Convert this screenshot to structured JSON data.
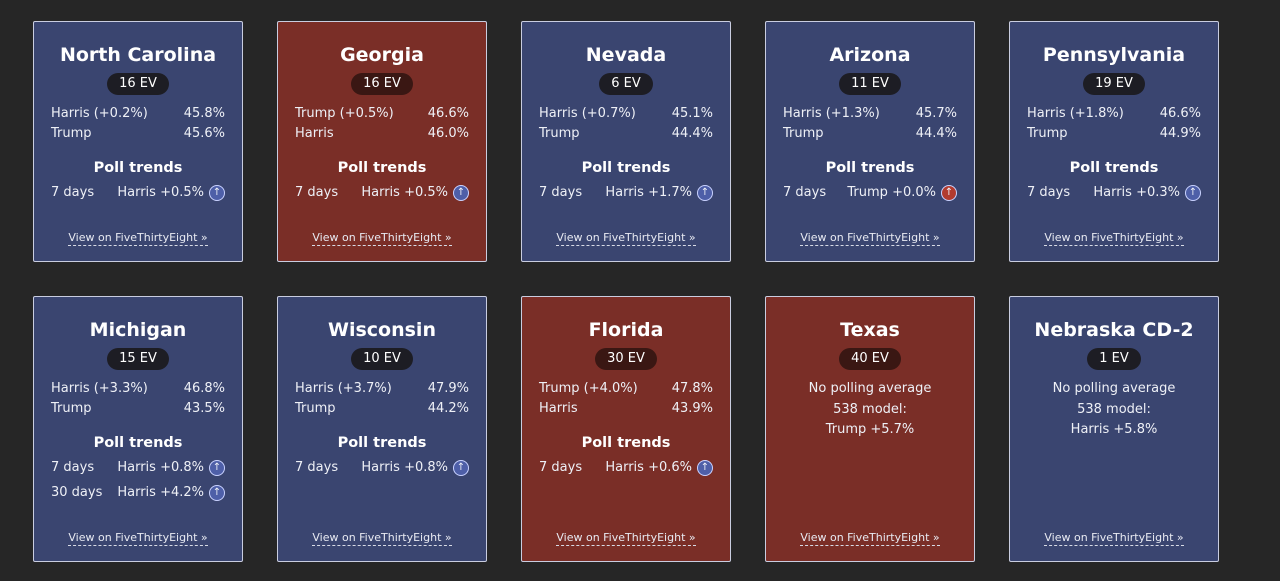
{
  "link_label": "View on FiveThirtyEight »",
  "poll_trends_label": "Poll trends",
  "colors": {
    "dem_card": "#3a4570",
    "rep_card": "#7a2e27",
    "background": "#262626"
  },
  "states": [
    {
      "name": "North Carolina",
      "ev": "16 EV",
      "color": "blue",
      "leader": "Harris (+0.2%)",
      "leader_pct": "45.8%",
      "trailer": "Trump",
      "trailer_pct": "45.6%",
      "trends": [
        {
          "period": "7 days",
          "value": "Harris +0.5%",
          "party": "dem"
        }
      ]
    },
    {
      "name": "Georgia",
      "ev": "16 EV",
      "color": "red",
      "leader": "Trump (+0.5%)",
      "leader_pct": "46.6%",
      "trailer": "Harris",
      "trailer_pct": "46.0%",
      "trends": [
        {
          "period": "7 days",
          "value": "Harris +0.5%",
          "party": "dem"
        }
      ]
    },
    {
      "name": "Nevada",
      "ev": "6 EV",
      "color": "blue",
      "leader": "Harris (+0.7%)",
      "leader_pct": "45.1%",
      "trailer": "Trump",
      "trailer_pct": "44.4%",
      "trends": [
        {
          "period": "7 days",
          "value": "Harris +1.7%",
          "party": "dem"
        }
      ]
    },
    {
      "name": "Arizona",
      "ev": "11 EV",
      "color": "blue",
      "leader": "Harris (+1.3%)",
      "leader_pct": "45.7%",
      "trailer": "Trump",
      "trailer_pct": "44.4%",
      "trends": [
        {
          "period": "7 days",
          "value": "Trump +0.0%",
          "party": "rep"
        }
      ]
    },
    {
      "name": "Pennsylvania",
      "ev": "19 EV",
      "color": "blue",
      "leader": "Harris (+1.8%)",
      "leader_pct": "46.6%",
      "trailer": "Trump",
      "trailer_pct": "44.9%",
      "trends": [
        {
          "period": "7 days",
          "value": "Harris +0.3%",
          "party": "dem"
        }
      ]
    },
    {
      "name": "Michigan",
      "ev": "15 EV",
      "color": "blue",
      "leader": "Harris (+3.3%)",
      "leader_pct": "46.8%",
      "trailer": "Trump",
      "trailer_pct": "43.5%",
      "trends": [
        {
          "period": "7 days",
          "value": "Harris +0.8%",
          "party": "dem"
        },
        {
          "period": "30 days",
          "value": "Harris +4.2%",
          "party": "dem"
        }
      ]
    },
    {
      "name": "Wisconsin",
      "ev": "10 EV",
      "color": "blue",
      "leader": "Harris (+3.7%)",
      "leader_pct": "47.9%",
      "trailer": "Trump",
      "trailer_pct": "44.2%",
      "trends": [
        {
          "period": "7 days",
          "value": "Harris +0.8%",
          "party": "dem"
        }
      ]
    },
    {
      "name": "Florida",
      "ev": "30 EV",
      "color": "red",
      "leader": "Trump (+4.0%)",
      "leader_pct": "47.8%",
      "trailer": "Harris",
      "trailer_pct": "43.9%",
      "trends": [
        {
          "period": "7 days",
          "value": "Harris +0.6%",
          "party": "dem"
        }
      ]
    },
    {
      "name": "Texas",
      "ev": "40 EV",
      "color": "red",
      "no_poll": [
        "No polling average",
        "538 model:",
        "Trump +5.7%"
      ]
    },
    {
      "name": "Nebraska CD-2",
      "ev": "1 EV",
      "color": "blue",
      "no_poll": [
        "No polling average",
        "538 model:",
        "Harris +5.8%"
      ]
    }
  ]
}
